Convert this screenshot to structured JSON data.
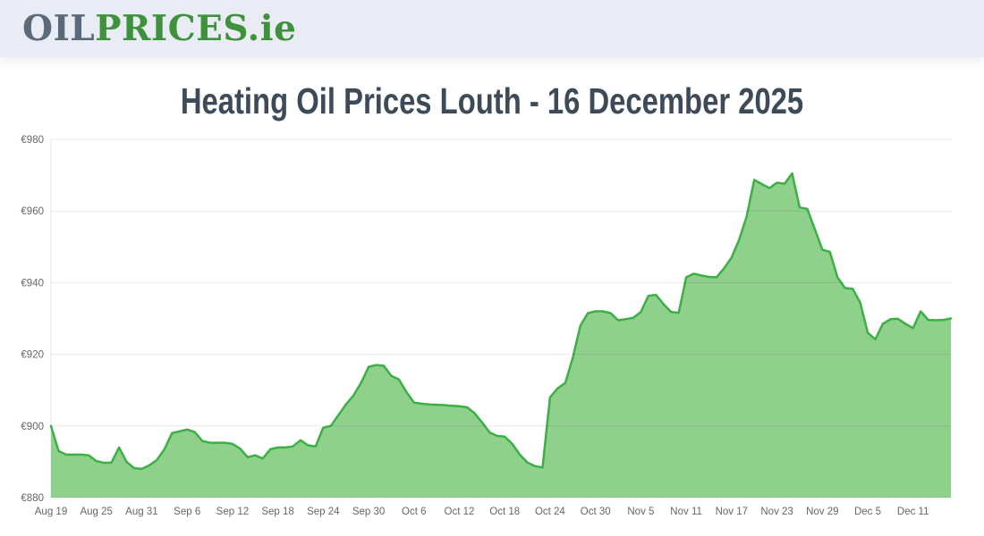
{
  "header": {
    "logo": {
      "part1": "OIL",
      "part2": "PRICES",
      "suffix": ".ie"
    }
  },
  "chart_data": {
    "type": "area",
    "title": "Heating Oil Prices Louth - 16 December 2025",
    "xlabel": "",
    "ylabel": "",
    "y_prefix": "€",
    "ylim": [
      880,
      980
    ],
    "y_ticks": [
      880,
      900,
      920,
      940,
      960,
      980
    ],
    "grid": true,
    "legend": false,
    "x_tick_labels": [
      "Aug 19",
      "Aug 25",
      "Aug 31",
      "Sep 6",
      "Sep 12",
      "Sep 18",
      "Sep 24",
      "Sep 30",
      "Oct 6",
      "Oct 12",
      "Oct 18",
      "Oct 24",
      "Oct 30",
      "Nov 5",
      "Nov 11",
      "Nov 17",
      "Nov 23",
      "Nov 29",
      "Dec 5",
      "Dec 11"
    ],
    "dates": [
      "Aug 19",
      "Aug 20",
      "Aug 21",
      "Aug 22",
      "Aug 23",
      "Aug 24",
      "Aug 25",
      "Aug 26",
      "Aug 27",
      "Aug 28",
      "Aug 29",
      "Aug 30",
      "Aug 31",
      "Sep 1",
      "Sep 2",
      "Sep 3",
      "Sep 4",
      "Sep 5",
      "Sep 6",
      "Sep 7",
      "Sep 8",
      "Sep 9",
      "Sep 10",
      "Sep 11",
      "Sep 12",
      "Sep 13",
      "Sep 14",
      "Sep 15",
      "Sep 16",
      "Sep 17",
      "Sep 18",
      "Sep 19",
      "Sep 20",
      "Sep 21",
      "Sep 22",
      "Sep 23",
      "Sep 24",
      "Sep 25",
      "Sep 26",
      "Sep 27",
      "Sep 28",
      "Sep 29",
      "Sep 30",
      "Oct 1",
      "Oct 2",
      "Oct 3",
      "Oct 4",
      "Oct 5",
      "Oct 6",
      "Oct 7",
      "Oct 8",
      "Oct 9",
      "Oct 10",
      "Oct 11",
      "Oct 12",
      "Oct 13",
      "Oct 14",
      "Oct 15",
      "Oct 16",
      "Oct 17",
      "Oct 18",
      "Oct 19",
      "Oct 20",
      "Oct 21",
      "Oct 22",
      "Oct 23",
      "Oct 24",
      "Oct 25",
      "Oct 26",
      "Oct 27",
      "Oct 28",
      "Oct 29",
      "Oct 30",
      "Oct 31",
      "Nov 1",
      "Nov 2",
      "Nov 3",
      "Nov 4",
      "Nov 5",
      "Nov 6",
      "Nov 7",
      "Nov 8",
      "Nov 9",
      "Nov 10",
      "Nov 11",
      "Nov 12",
      "Nov 13",
      "Nov 14",
      "Nov 15",
      "Nov 16",
      "Nov 17",
      "Nov 18",
      "Nov 19",
      "Nov 20",
      "Nov 21",
      "Nov 22",
      "Nov 23",
      "Nov 24",
      "Nov 25",
      "Nov 26",
      "Nov 27",
      "Nov 28",
      "Nov 29",
      "Nov 30",
      "Dec 1",
      "Dec 2",
      "Dec 3",
      "Dec 4",
      "Dec 5",
      "Dec 6",
      "Dec 7",
      "Dec 8",
      "Dec 9",
      "Dec 10",
      "Dec 11",
      "Dec 12",
      "Dec 13",
      "Dec 14",
      "Dec 15",
      "Dec 16"
    ],
    "values": [
      900,
      893,
      892,
      892,
      892,
      891.8,
      890.2,
      889.7,
      889.8,
      894,
      890,
      888.2,
      888,
      889,
      890.5,
      893.5,
      898,
      898.5,
      899,
      898.3,
      895.8,
      895.3,
      895.3,
      895.3,
      895,
      893.7,
      891.3,
      891.8,
      890.9,
      893.5,
      894,
      894,
      894.3,
      896,
      894.6,
      894.3,
      899.5,
      900,
      903,
      906,
      908.5,
      912,
      916.5,
      917,
      916.8,
      914,
      913,
      909.5,
      906.5,
      906.2,
      906,
      905.9,
      905.8,
      905.6,
      905.5,
      905.2,
      903.6,
      901,
      898.2,
      897.2,
      897,
      895,
      892,
      889.8,
      888.8,
      888.4,
      908,
      910.5,
      912,
      919,
      928,
      931.5,
      932,
      932,
      931.5,
      929.5,
      929.8,
      930.2,
      931.8,
      936.3,
      936.6,
      934,
      931.8,
      931.6,
      941.5,
      942.5,
      942,
      941.6,
      941.5,
      944,
      947,
      952,
      958.5,
      968.7,
      967.5,
      966.4,
      967.9,
      967.6,
      970.5,
      961,
      960.6,
      955,
      949.2,
      948.6,
      941.5,
      938.5,
      938.3,
      934.5,
      926,
      924.2,
      928.5,
      929.8,
      929.9,
      928.5,
      927.3,
      932,
      929.6,
      929.5,
      929.6,
      930
    ],
    "colors": {
      "line": "#3cb044",
      "fill": "#8fd18c",
      "grid": "rgba(0,0,0,0.09)",
      "axis_line": "#e6e6e6",
      "label": "#666666",
      "header_bg": "#e9ecf4",
      "title": "#3d4a57",
      "logo_gray": "#5a6a79",
      "logo_green": "#3f923c"
    }
  }
}
